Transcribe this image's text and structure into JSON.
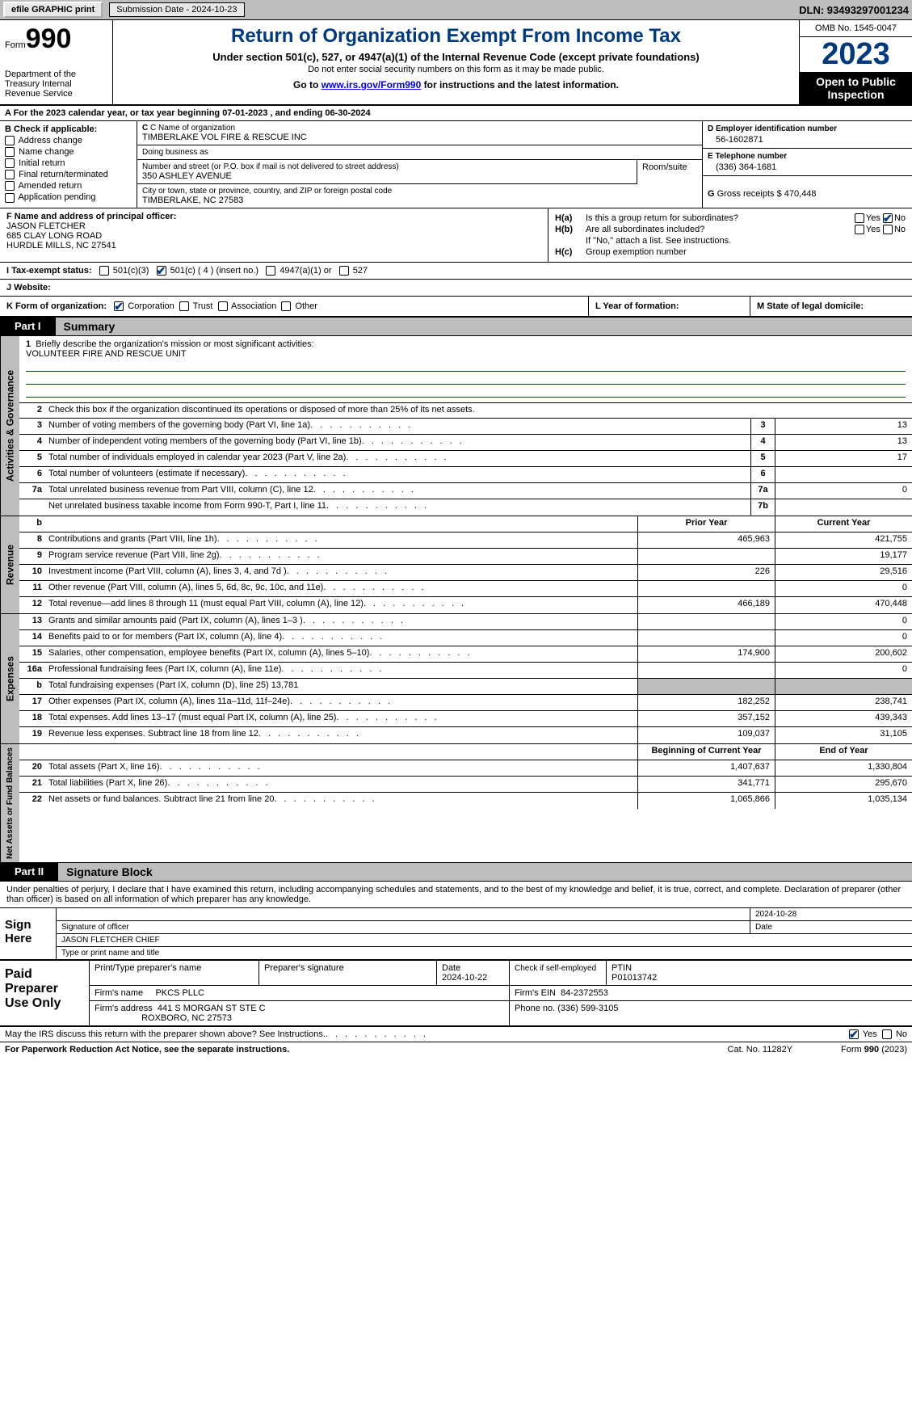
{
  "topbar": {
    "efile": "efile GRAPHIC print",
    "submission_label": "Submission Date - 2024-10-23",
    "dln": "DLN: 93493297001234"
  },
  "header": {
    "form_label": "Form",
    "form_no": "990",
    "dept": "Department of the Treasury Internal Revenue Service",
    "title": "Return of Organization Exempt From Income Tax",
    "sub1": "Under section 501(c), 527, or 4947(a)(1) of the Internal Revenue Code (except private foundations)",
    "sub2": "Do not enter social security numbers on this form as it may be made public.",
    "sub3_pre": "Go to ",
    "sub3_link": "www.irs.gov/Form990",
    "sub3_post": " for instructions and the latest information.",
    "omb": "OMB No. 1545-0047",
    "year": "2023",
    "open": "Open to Public Inspection"
  },
  "line_a": "A For the 2023 calendar year, or tax year beginning 07-01-2023    , and ending 06-30-2024",
  "box_b": {
    "label": "B Check if applicable:",
    "items": [
      "Address change",
      "Name change",
      "Initial return",
      "Final return/terminated",
      "Amended return",
      "Application pending"
    ]
  },
  "box_c": {
    "name_lbl": "C Name of organization",
    "name": "TIMBERLAKE VOL FIRE & RESCUE INC",
    "dba_lbl": "Doing business as",
    "dba": "",
    "addr_lbl": "Number and street (or P.O. box if mail is not delivered to street address)",
    "addr": "350 ASHLEY AVENUE",
    "room_lbl": "Room/suite",
    "city_lbl": "City or town, state or province, country, and ZIP or foreign postal code",
    "city": "TIMBERLAKE, NC  27583"
  },
  "box_d": {
    "lbl": "D Employer identification number",
    "val": "56-1602871"
  },
  "box_e": {
    "lbl": "E Telephone number",
    "val": "(336) 364-1681"
  },
  "box_g": {
    "lbl": "G",
    "txt": "Gross receipts $",
    "val": "470,448"
  },
  "box_f": {
    "lbl": "F  Name and address of principal officer:",
    "name": "JASON FLETCHER",
    "addr1": "685 CLAY LONG ROAD",
    "addr2": "HURDLE MILLS, NC  27541"
  },
  "box_h": {
    "a_lbl": "H(a)",
    "a_txt": "Is this a group return for subordinates?",
    "b_lbl": "H(b)",
    "b_txt": "Are all subordinates included?",
    "b_note": "If \"No,\" attach a list. See instructions.",
    "c_lbl": "H(c)",
    "c_txt": "Group exemption number",
    "yes": "Yes",
    "no": "No"
  },
  "box_i": {
    "lbl": "I   Tax-exempt status:",
    "opts": [
      "501(c)(3)",
      "501(c) ( 4 ) (insert no.)",
      "4947(a)(1) or",
      "527"
    ]
  },
  "box_j": {
    "lbl": "J   Website:",
    "val": ""
  },
  "box_k": {
    "lbl": "K Form of organization:",
    "opts": [
      "Corporation",
      "Trust",
      "Association",
      "Other"
    ]
  },
  "box_l": "L Year of formation:",
  "box_m": "M State of legal domicile:",
  "part1": {
    "tag": "Part I",
    "title": "Summary"
  },
  "summary": {
    "mission_lbl": "Briefly describe the organization's mission or most significant activities:",
    "mission": "VOLUNTEER FIRE AND RESCUE UNIT",
    "line2": "Check this box      if the organization discontinued its operations or disposed of more than 25% of its net assets.",
    "lines": [
      {
        "n": "3",
        "d": "Number of voting members of the governing body (Part VI, line 1a)",
        "nb": "3",
        "v": "13"
      },
      {
        "n": "4",
        "d": "Number of independent voting members of the governing body (Part VI, line 1b)",
        "nb": "4",
        "v": "13"
      },
      {
        "n": "5",
        "d": "Total number of individuals employed in calendar year 2023 (Part V, line 2a)",
        "nb": "5",
        "v": "17"
      },
      {
        "n": "6",
        "d": "Total number of volunteers (estimate if necessary)",
        "nb": "6",
        "v": ""
      },
      {
        "n": "7a",
        "d": "Total unrelated business revenue from Part VIII, column (C), line 12",
        "nb": "7a",
        "v": "0"
      },
      {
        "n": "",
        "d": "Net unrelated business taxable income from Form 990-T, Part I, line 11",
        "nb": "7b",
        "v": ""
      }
    ],
    "rev_hdr_prior": "Prior Year",
    "rev_hdr_cur": "Current Year",
    "revenue": [
      {
        "n": "8",
        "d": "Contributions and grants (Part VIII, line 1h)",
        "p": "465,963",
        "c": "421,755"
      },
      {
        "n": "9",
        "d": "Program service revenue (Part VIII, line 2g)",
        "p": "",
        "c": "19,177"
      },
      {
        "n": "10",
        "d": "Investment income (Part VIII, column (A), lines 3, 4, and 7d )",
        "p": "226",
        "c": "29,516"
      },
      {
        "n": "11",
        "d": "Other revenue (Part VIII, column (A), lines 5, 6d, 8c, 9c, 10c, and 11e)",
        "p": "",
        "c": "0"
      },
      {
        "n": "12",
        "d": "Total revenue—add lines 8 through 11 (must equal Part VIII, column (A), line 12)",
        "p": "466,189",
        "c": "470,448"
      }
    ],
    "expenses": [
      {
        "n": "13",
        "d": "Grants and similar amounts paid (Part IX, column (A), lines 1–3 )",
        "p": "",
        "c": "0"
      },
      {
        "n": "14",
        "d": "Benefits paid to or for members (Part IX, column (A), line 4)",
        "p": "",
        "c": "0"
      },
      {
        "n": "15",
        "d": "Salaries, other compensation, employee benefits (Part IX, column (A), lines 5–10)",
        "p": "174,900",
        "c": "200,602"
      },
      {
        "n": "16a",
        "d": "Professional fundraising fees (Part IX, column (A), line 11e)",
        "p": "",
        "c": "0"
      },
      {
        "n": "b",
        "d": "Total fundraising expenses (Part IX, column (D), line 25) 13,781",
        "p": "shade",
        "c": "shade"
      },
      {
        "n": "17",
        "d": "Other expenses (Part IX, column (A), lines 11a–11d, 11f–24e)",
        "p": "182,252",
        "c": "238,741"
      },
      {
        "n": "18",
        "d": "Total expenses. Add lines 13–17 (must equal Part IX, column (A), line 25)",
        "p": "357,152",
        "c": "439,343"
      },
      {
        "n": "19",
        "d": "Revenue less expenses. Subtract line 18 from line 12",
        "p": "109,037",
        "c": "31,105"
      }
    ],
    "na_hdr_beg": "Beginning of Current Year",
    "na_hdr_end": "End of Year",
    "netassets": [
      {
        "n": "20",
        "d": "Total assets (Part X, line 16)",
        "p": "1,407,637",
        "c": "1,330,804"
      },
      {
        "n": "21",
        "d": "Total liabilities (Part X, line 26)",
        "p": "341,771",
        "c": "295,670"
      },
      {
        "n": "22",
        "d": "Net assets or fund balances. Subtract line 21 from line 20",
        "p": "1,065,866",
        "c": "1,035,134"
      }
    ]
  },
  "vtabs": {
    "gov": "Activities & Governance",
    "rev": "Revenue",
    "exp": "Expenses",
    "na": "Net Assets or Fund Balances"
  },
  "part2": {
    "tag": "Part II",
    "title": "Signature Block"
  },
  "sig": {
    "decl": "Under penalties of perjury, I declare that I have examined this return, including accompanying schedules and statements, and to the best of my knowledge and belief, it is true, correct, and complete. Declaration of preparer (other than officer) is based on all information of which preparer has any knowledge.",
    "sign_here": "Sign Here",
    "sig_off_lbl": "Signature of officer",
    "sig_date": "2024-10-28",
    "date_lbl": "Date",
    "name_title": "JASON FLETCHER  CHIEF",
    "nt_lbl": "Type or print name and title"
  },
  "prep": {
    "label": "Paid Preparer Use Only",
    "h1": "Print/Type preparer's name",
    "h2": "Preparer's signature",
    "h3": "Date",
    "h3v": "2024-10-22",
    "h4": "Check        if self-employed",
    "h5": "PTIN",
    "h5v": "P01013742",
    "firm_lbl": "Firm's name",
    "firm": "PKCS PLLC",
    "ein_lbl": "Firm's EIN",
    "ein": "84-2372553",
    "addr_lbl": "Firm's address",
    "addr1": "441 S MORGAN ST STE C",
    "addr2": "ROXBORO, NC  27573",
    "phone_lbl": "Phone no.",
    "phone": "(336) 599-3105"
  },
  "discuss": "May the IRS discuss this return with the preparer shown above? See Instructions.",
  "footer": {
    "l": "For Paperwork Reduction Act Notice, see the separate instructions.",
    "m": "Cat. No. 11282Y",
    "r": "Form 990 (2023)"
  }
}
